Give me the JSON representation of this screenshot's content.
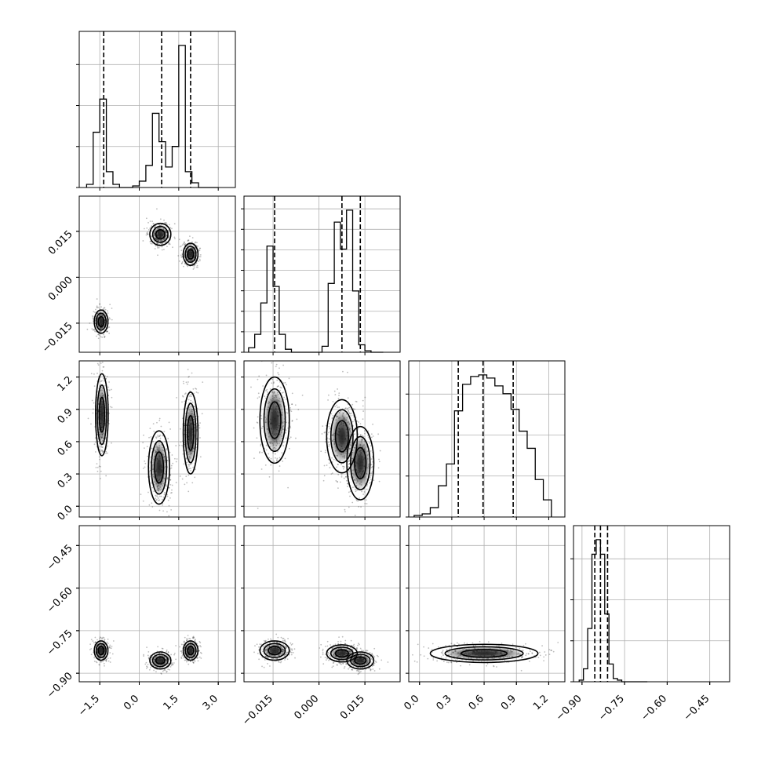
{
  "chart_data": {
    "type": "corner",
    "grid": true,
    "title": "",
    "parameters": [
      {
        "ticks": [
          -1.5,
          0.0,
          1.5,
          3.0
        ],
        "tick_labels": [
          "−1.5",
          "0.0",
          "1.5",
          "3.0"
        ],
        "range": [
          -2.28,
          3.65
        ],
        "quantiles": [
          -1.35,
          0.85,
          1.95
        ],
        "hist": {
          "edges": [
            -2.0,
            -1.75,
            -1.5,
            -1.25,
            -1.0,
            -0.75,
            -0.5,
            -0.25,
            0.0,
            0.25,
            0.5,
            0.75,
            1.0,
            1.25,
            1.5,
            1.75,
            2.0,
            2.25,
            2.5,
            2.75,
            3.0
          ],
          "counts": [
            0.02,
            0.35,
            0.56,
            0.1,
            0.02,
            0.0,
            0.0,
            0.01,
            0.04,
            0.14,
            0.47,
            0.29,
            0.13,
            0.26,
            0.9,
            0.1,
            0.03,
            0.0,
            0.0,
            0.0
          ]
        },
        "ytick_fracs": [
          0.0,
          0.25,
          0.5,
          0.75
        ]
      },
      {
        "ticks": [
          -0.015,
          0.0,
          0.015
        ],
        "tick_labels": [
          "−0.015",
          "0.000",
          "0.015"
        ],
        "range": [
          -0.0245,
          0.0265
        ],
        "quantiles": [
          -0.0145,
          0.0075,
          0.0135
        ],
        "hist": {
          "edges": [
            -0.023,
            -0.021,
            -0.019,
            -0.017,
            -0.015,
            -0.013,
            -0.011,
            -0.009,
            -0.007,
            -0.005,
            -0.003,
            -0.001,
            0.001,
            0.003,
            0.005,
            0.007,
            0.009,
            0.011,
            0.013,
            0.015,
            0.017,
            0.019,
            0.021
          ],
          "counts": [
            0.03,
            0.12,
            0.33,
            0.71,
            0.44,
            0.12,
            0.02,
            0.0,
            0.0,
            0.0,
            0.0,
            0.0,
            0.04,
            0.46,
            0.87,
            0.69,
            0.95,
            0.41,
            0.05,
            0.01,
            0.0,
            0.0
          ]
        },
        "ytick_fracs": [
          0.0,
          0.125,
          0.25,
          0.375,
          0.5,
          0.625,
          0.75,
          0.875
        ]
      },
      {
        "ticks": [
          0.0,
          0.3,
          0.6,
          0.9,
          1.2
        ],
        "tick_labels": [
          "0.0",
          "0.3",
          "0.6",
          "0.9",
          "1.2"
        ],
        "range": [
          -0.1,
          1.35
        ],
        "quantiles": [
          0.36,
          0.59,
          0.87
        ],
        "hist": {
          "edges": [
            -0.05,
            0.025,
            0.1,
            0.175,
            0.25,
            0.325,
            0.4,
            0.475,
            0.55,
            0.625,
            0.7,
            0.775,
            0.85,
            0.925,
            1.0,
            1.075,
            1.15,
            1.225
          ],
          "counts": [
            0.01,
            0.02,
            0.06,
            0.2,
            0.34,
            0.68,
            0.85,
            0.9,
            0.91,
            0.89,
            0.84,
            0.79,
            0.69,
            0.55,
            0.44,
            0.24,
            0.11
          ]
        },
        "ytick_fracs": [
          0.0,
          0.25,
          0.5,
          0.75
        ]
      },
      {
        "ticks": [
          -0.9,
          -0.75,
          -0.6,
          -0.45
        ],
        "tick_labels": [
          "−0.90",
          "−0.75",
          "−0.60",
          "−0.45"
        ],
        "range": [
          -0.93,
          -0.38
        ],
        "quantiles": [
          -0.855,
          -0.835,
          -0.81
        ],
        "hist": {
          "edges": [
            -0.91,
            -0.895,
            -0.88,
            -0.865,
            -0.85,
            -0.835,
            -0.82,
            -0.805,
            -0.79,
            -0.775,
            -0.76,
            -0.745,
            -0.73,
            -0.715,
            -0.7,
            -0.685,
            -0.67
          ],
          "counts": [
            0.01,
            0.08,
            0.33,
            0.79,
            0.88,
            0.79,
            0.42,
            0.11,
            0.02,
            0.01,
            0.0,
            0.0,
            0.0,
            0.0,
            0.0,
            0.0
          ]
        },
        "ytick_fracs": [
          0.0,
          0.25,
          0.5,
          0.75
        ]
      }
    ],
    "pairs": [
      {
        "x": 0,
        "y": 1,
        "clusters": [
          [
            -1.45,
            -0.0145,
            0.13,
            0.0019
          ],
          [
            0.8,
            0.014,
            0.2,
            0.0018
          ],
          [
            1.95,
            0.0075,
            0.14,
            0.0018
          ]
        ]
      },
      {
        "x": 0,
        "y": 2,
        "clusters": [
          [
            -1.42,
            0.85,
            0.12,
            0.19
          ],
          [
            0.75,
            0.36,
            0.2,
            0.17
          ],
          [
            1.95,
            0.68,
            0.14,
            0.19
          ]
        ]
      },
      {
        "x": 1,
        "y": 2,
        "clusters": [
          [
            -0.0145,
            0.8,
            0.0024,
            0.2
          ],
          [
            0.0075,
            0.65,
            0.0025,
            0.17
          ],
          [
            0.0135,
            0.4,
            0.0022,
            0.17
          ]
        ]
      },
      {
        "x": 0,
        "y": 3,
        "clusters": [
          [
            -1.45,
            -0.82,
            0.13,
            0.017
          ],
          [
            0.8,
            -0.855,
            0.2,
            0.015
          ],
          [
            1.95,
            -0.82,
            0.14,
            0.017
          ]
        ]
      },
      {
        "x": 1,
        "y": 3,
        "clusters": [
          [
            -0.0145,
            -0.82,
            0.0024,
            0.017
          ],
          [
            0.0075,
            -0.83,
            0.0025,
            0.015
          ],
          [
            0.0135,
            -0.855,
            0.0022,
            0.015
          ]
        ]
      },
      {
        "x": 2,
        "y": 3,
        "clusters": [
          [
            0.6,
            -0.83,
            0.25,
            0.016
          ]
        ]
      }
    ],
    "colors": {
      "contour": "#000000",
      "grid": "#b0b0b0",
      "scatter": "#444444",
      "quantile_line": "#000000"
    }
  }
}
